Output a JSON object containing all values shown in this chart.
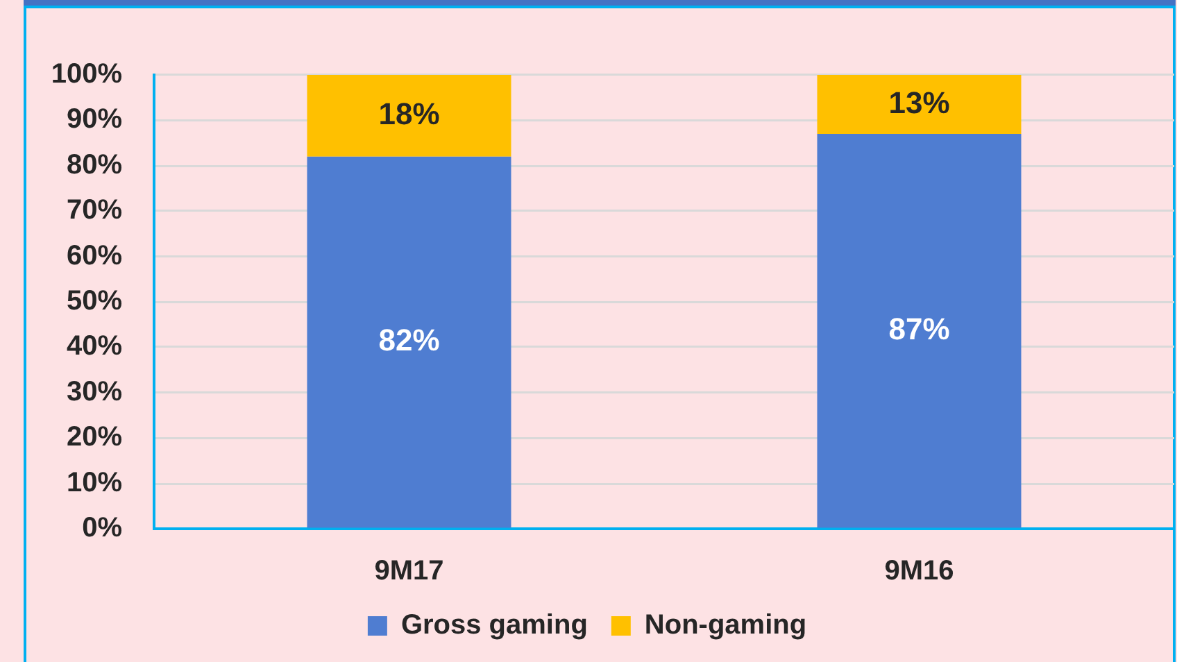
{
  "chart_data": {
    "type": "bar",
    "stacked": true,
    "categories": [
      "9M17",
      "9M16"
    ],
    "series": [
      {
        "name": "Gross gaming",
        "color": "#4f7dd1",
        "values": [
          82,
          87
        ],
        "value_labels": [
          "82%",
          "87%"
        ]
      },
      {
        "name": "Non-gaming",
        "color": "#ffc000",
        "values": [
          18,
          13
        ],
        "value_labels": [
          "18%",
          "13%"
        ]
      }
    ],
    "ylim": [
      0,
      100
    ],
    "yticks": [
      {
        "value": 0,
        "label": "0%"
      },
      {
        "value": 10,
        "label": "10%"
      },
      {
        "value": 20,
        "label": "20%"
      },
      {
        "value": 30,
        "label": "30%"
      },
      {
        "value": 40,
        "label": "40%"
      },
      {
        "value": 50,
        "label": "50%"
      },
      {
        "value": 60,
        "label": "60%"
      },
      {
        "value": 70,
        "label": "70%"
      },
      {
        "value": 80,
        "label": "80%"
      },
      {
        "value": 90,
        "label": "90%"
      },
      {
        "value": 100,
        "label": "100%"
      }
    ],
    "grid": "y",
    "legend": "bottom"
  }
}
